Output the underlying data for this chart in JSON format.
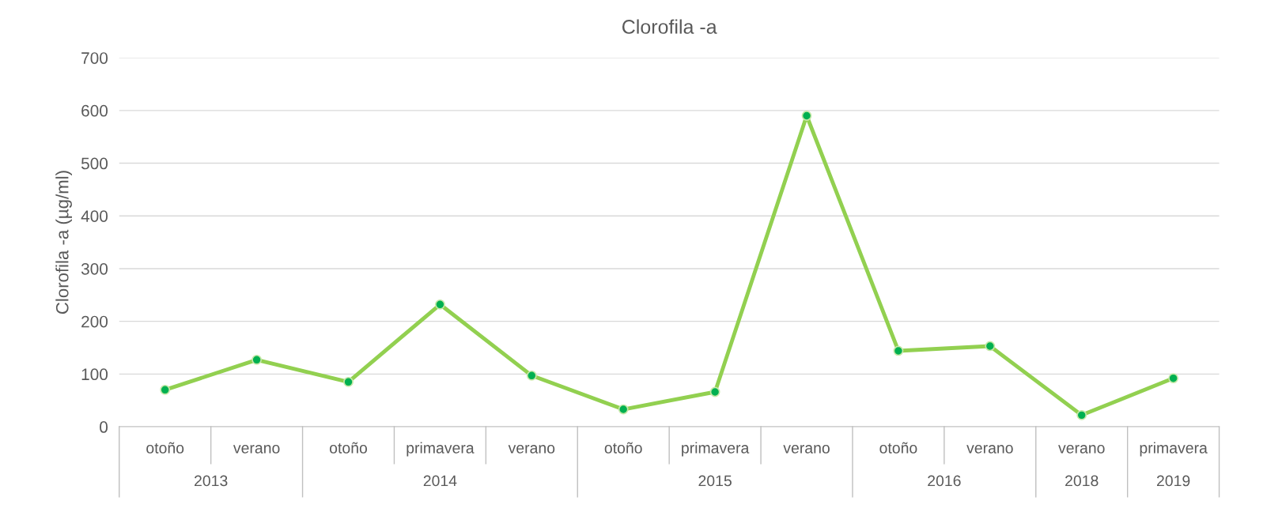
{
  "chart_data": {
    "type": "line",
    "title": "Clorofila -a",
    "ylabel": "Clorofila -a (µg/ml)",
    "categories": [
      "otoño",
      "verano",
      "otoño",
      "primavera",
      "verano",
      "otoño",
      "primavera",
      "verano",
      "otoño",
      "verano",
      "verano",
      "primavera"
    ],
    "series": [
      {
        "color": "#92d050",
        "values": [
          70,
          127,
          85,
          232,
          97,
          33,
          66,
          590,
          144,
          153,
          22,
          92
        ]
      }
    ],
    "marker": "circle",
    "ylim": [
      0,
      700
    ],
    "yticks": [
      0,
      100,
      200,
      300,
      400,
      500,
      600,
      700
    ],
    "grid": "y",
    "annotations": [
      "2013",
      "2014",
      "2015",
      "2016",
      "2018",
      "2019"
    ]
  }
}
